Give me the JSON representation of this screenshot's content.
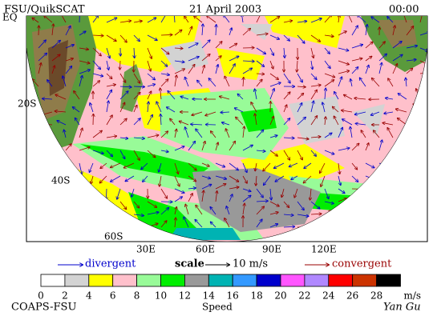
{
  "header": {
    "title": "FSU/QuikSCAT",
    "date": "21 April 2003",
    "time": "00:00"
  },
  "map": {
    "lat_labels": [
      "EQ",
      "20S",
      "40S",
      "60S"
    ],
    "lon_labels": [
      "30E",
      "60E",
      "90E",
      "120E"
    ]
  },
  "legend": {
    "divergent": "divergent",
    "scale": "scale",
    "scale_value": "10 m/s",
    "convergent": "convergent"
  },
  "colorbar": {
    "ticks": [
      0,
      2,
      4,
      6,
      8,
      10,
      12,
      14,
      16,
      18,
      20,
      22,
      24,
      26,
      28
    ],
    "unit": "m/s",
    "colors": [
      "#ffffff",
      "#d3d3d3",
      "#ffff00",
      "#ffc0cb",
      "#98fb98",
      "#00ee00",
      "#999999",
      "#00b3b3",
      "#3399ff",
      "#0000cc",
      "#ff55ff",
      "#b088ff",
      "#ff0000",
      "#cc3300",
      "#000000"
    ],
    "label": "Speed"
  },
  "footer": {
    "org": "COAPS-FSU",
    "signature": "Yan Gu"
  }
}
